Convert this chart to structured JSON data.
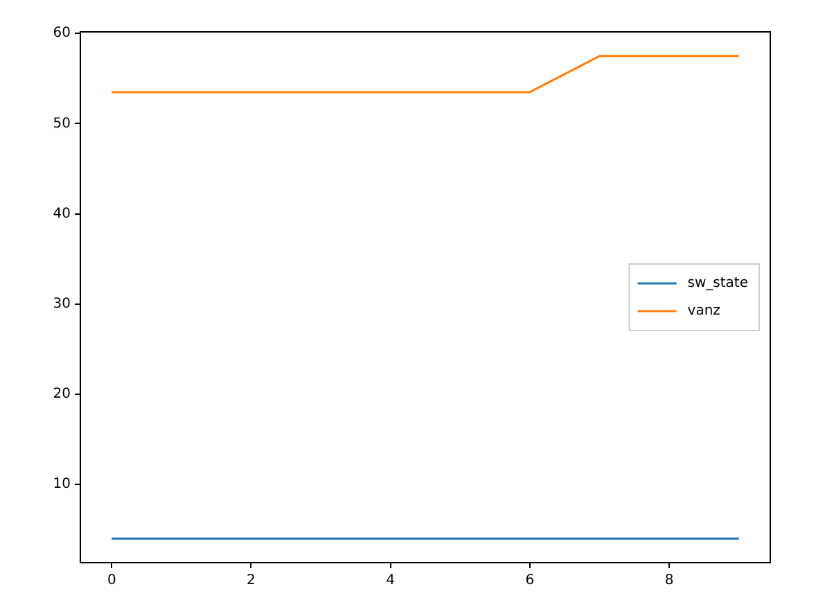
{
  "chart_data": {
    "type": "line",
    "x": [
      0,
      1,
      2,
      3,
      4,
      5,
      6,
      7,
      8,
      9
    ],
    "series": [
      {
        "name": "sw_state",
        "color": "#1f77b4",
        "values": [
          4,
          4,
          4,
          4,
          4,
          4,
          4,
          4,
          4,
          4
        ]
      },
      {
        "name": "vanz",
        "color": "#ff7f0e",
        "values": [
          53.5,
          53.5,
          53.5,
          53.5,
          53.5,
          53.5,
          53.5,
          57.5,
          57.5,
          57.5
        ]
      }
    ],
    "xlim": [
      -0.45,
      9.45
    ],
    "xticks": [
      0,
      2,
      4,
      6,
      8
    ],
    "ylim": [
      1.325,
      60.175
    ],
    "yticks": [
      10,
      20,
      30,
      40,
      50,
      60
    ],
    "grid": false,
    "legend": "center right",
    "marker": "none",
    "line_style": "solid"
  }
}
